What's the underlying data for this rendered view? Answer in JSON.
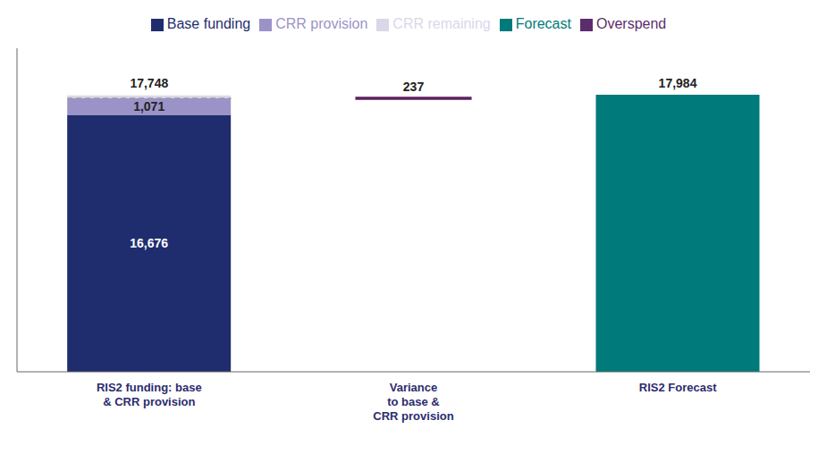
{
  "chart_data": {
    "type": "bar",
    "stacked": true,
    "data_labels": true,
    "tick_labels": "x",
    "categories": [
      "RIS2 funding: base\n& CRR provision",
      "Variance\nto base &\nCRR provision",
      "RIS2 Forecast"
    ],
    "ylim": [
      0,
      21000
    ],
    "series": [
      {
        "name": "Base funding",
        "color": "#1f2d6e",
        "values": [
          16676,
          null,
          null
        ],
        "value_labels": [
          "16,676",
          null,
          null
        ]
      },
      {
        "name": "CRR provision",
        "color": "#9b93c8",
        "values": [
          1071,
          null,
          null
        ],
        "value_labels": [
          "1,071",
          null,
          null
        ]
      },
      {
        "name": "CRR remaining",
        "color": "#d8d8e8",
        "values": [
          200,
          null,
          null
        ]
      },
      {
        "name": "Forecast",
        "color": "#007a7a",
        "values": [
          null,
          null,
          17984
        ],
        "value_labels": [
          null,
          null,
          "17,984"
        ]
      },
      {
        "name": "Overspend",
        "color": "#5c2d6e",
        "values": [
          null,
          null,
          null
        ]
      }
    ],
    "annotations": [
      {
        "category": "RIS2 funding: base\n& CRR provision",
        "y": 17748,
        "text": "17,748",
        "color": "#999999",
        "line_style": "dashed"
      },
      {
        "category": "Variance\nto base &\nCRR provision",
        "y": 17748,
        "text": "237",
        "color": "#5c2060",
        "line_style": "solid"
      }
    ]
  }
}
